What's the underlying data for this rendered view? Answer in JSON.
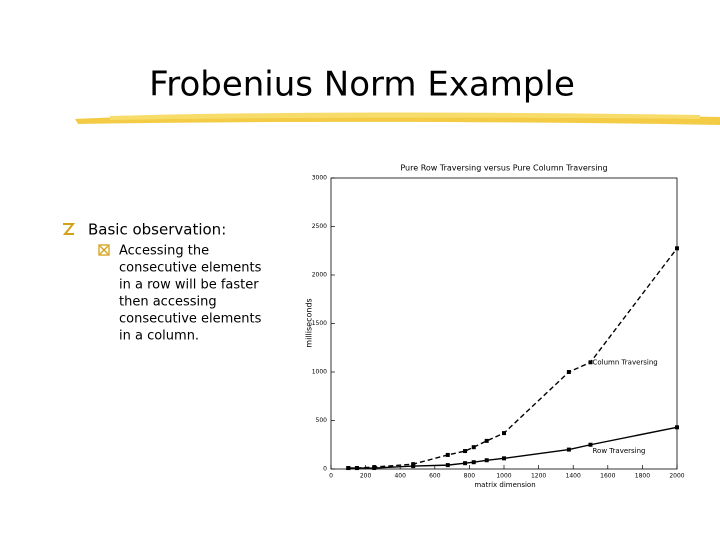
{
  "slide": {
    "title": "Frobenius Norm Example",
    "bullet": "Basic observation:",
    "sub_bullet_lines": [
      "Accessing the",
      "consecutive elements",
      "in a row will be faster",
      "then accessing",
      "consecutive elements",
      "in a column."
    ]
  },
  "chart_data": {
    "type": "line",
    "title": "Pure Row Traversing versus Pure Column Traversing",
    "x_label": "matrix dimension",
    "y_label": "milliseconds",
    "x": [
      100,
      150,
      250,
      475,
      675,
      775,
      825,
      900,
      1000,
      1375,
      1500,
      2000
    ],
    "series": [
      {
        "name": "Column Traversing",
        "color": "#000000",
        "line_style": "dashed",
        "values": [
          10,
          10,
          20,
          50,
          145,
          185,
          225,
          290,
          370,
          1000,
          1100,
          2275
        ]
      },
      {
        "name": "Row Traversing",
        "color": "#000000",
        "line_style": "solid",
        "values": [
          10,
          10,
          10,
          30,
          40,
          60,
          70,
          90,
          110,
          200,
          250,
          430
        ]
      }
    ],
    "xlim": [
      0,
      2000
    ],
    "ylim": [
      0,
      3000
    ],
    "xticks": [
      0,
      200,
      400,
      600,
      800,
      1000,
      1200,
      1400,
      1600,
      1800,
      2000
    ],
    "yticks": [
      0,
      500,
      1000,
      1500,
      2000,
      2500,
      3000
    ]
  }
}
